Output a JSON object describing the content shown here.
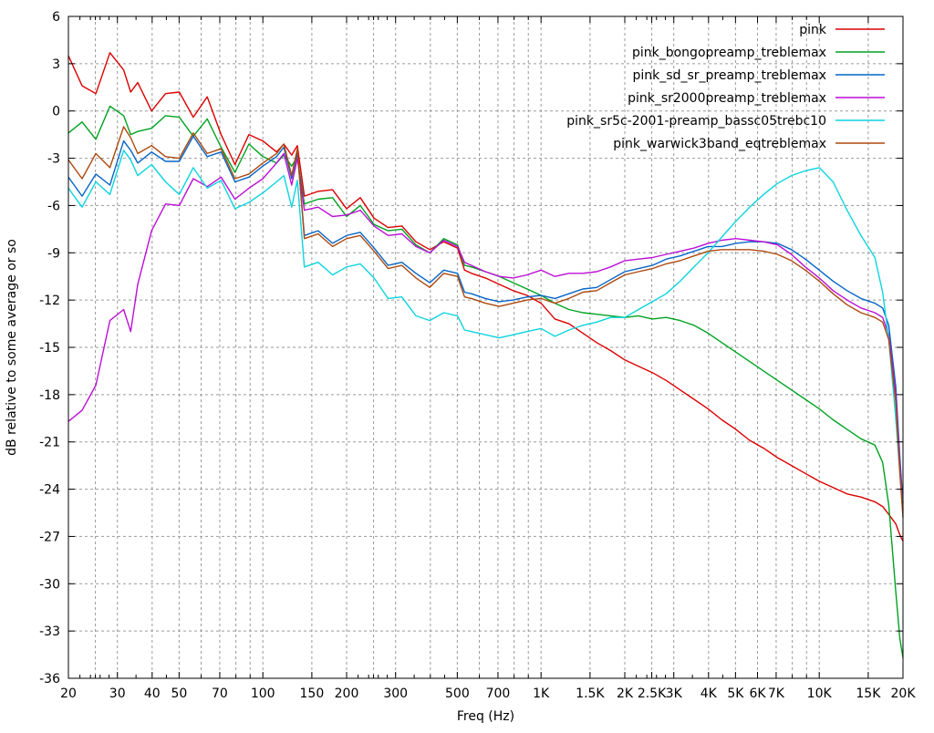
{
  "chart_data": {
    "type": "line",
    "title": "",
    "xlabel": "Freq (Hz)",
    "ylabel": "dB relative to some average or so",
    "x_scale": "log",
    "xlim": [
      20,
      20000
    ],
    "ylim": [
      -36,
      6
    ],
    "y_tick_step": 3,
    "grid": true,
    "grid_color": "#9a9a9a",
    "border_color": "#000000",
    "background_color": "#ffffff",
    "legend_position": "top-right-inside",
    "x_ticks": [
      {
        "f": 20,
        "label": "20"
      },
      {
        "f": 30,
        "label": "30"
      },
      {
        "f": 40,
        "label": "40"
      },
      {
        "f": 50,
        "label": "50"
      },
      {
        "f": 70,
        "label": "70"
      },
      {
        "f": 100,
        "label": "100"
      },
      {
        "f": 150,
        "label": "150"
      },
      {
        "f": 200,
        "label": "200"
      },
      {
        "f": 300,
        "label": "300"
      },
      {
        "f": 500,
        "label": "500"
      },
      {
        "f": 700,
        "label": "700"
      },
      {
        "f": 1000,
        "label": "1K"
      },
      {
        "f": 1500,
        "label": "1.5K"
      },
      {
        "f": 2000,
        "label": "2K"
      },
      {
        "f": 2500,
        "label": "2.5K"
      },
      {
        "f": 3000,
        "label": "3K"
      },
      {
        "f": 4000,
        "label": "4K"
      },
      {
        "f": 5000,
        "label": "5K"
      },
      {
        "f": 6000,
        "label": "6K"
      },
      {
        "f": 7000,
        "label": "7K"
      },
      {
        "f": 10000,
        "label": "10K"
      },
      {
        "f": 15000,
        "label": "15K"
      },
      {
        "f": 20000,
        "label": "20K"
      }
    ],
    "x_minor_grid": [
      25,
      60,
      80,
      90,
      250,
      400,
      600,
      800,
      900,
      8000,
      9000
    ],
    "x_tiny_ticks": [
      22,
      24,
      26,
      28,
      35,
      45,
      220,
      240,
      260,
      280,
      350,
      450,
      2200,
      2400,
      2600,
      2800,
      3500,
      4500
    ],
    "freqs": [
      20,
      22.4,
      25.1,
      28.2,
      31.6,
      33.5,
      35.5,
      39.8,
      44.7,
      50.1,
      56.2,
      63.1,
      70.8,
      79.4,
      89.1,
      100,
      112,
      119,
      127,
      133,
      141,
      158,
      178,
      200,
      224,
      251,
      282,
      316,
      355,
      398,
      447,
      501,
      531,
      562,
      631,
      708,
      794,
      891,
      1000,
      1122,
      1259,
      1413,
      1585,
      1778,
      2000,
      2239,
      2512,
      2818,
      3162,
      3548,
      3981,
      4467,
      5012,
      5623,
      6310,
      7079,
      7943,
      8913,
      10000,
      11220,
      12589,
      14125,
      15849,
      16900,
      17783,
      18836,
      19500,
      20000
    ],
    "series": [
      {
        "name": "pink",
        "color": "#dc0000",
        "values": [
          3.5,
          1.6,
          1.1,
          3.7,
          2.6,
          1.2,
          1.8,
          0.0,
          1.1,
          1.2,
          -0.4,
          0.9,
          -1.5,
          -3.4,
          -1.5,
          -1.9,
          -2.6,
          -2.1,
          -2.8,
          -2.2,
          -5.4,
          -5.1,
          -5.0,
          -6.2,
          -5.5,
          -6.8,
          -7.4,
          -7.3,
          -8.3,
          -8.8,
          -8.3,
          -8.7,
          -10.1,
          -10.3,
          -10.6,
          -11.0,
          -11.4,
          -11.7,
          -12.2,
          -13.2,
          -13.5,
          -14.1,
          -14.7,
          -15.2,
          -15.8,
          -16.2,
          -16.6,
          -17.1,
          -17.7,
          -18.3,
          -18.9,
          -19.6,
          -20.2,
          -20.9,
          -21.4,
          -22.0,
          -22.5,
          -23.0,
          -23.5,
          -23.9,
          -24.3,
          -24.5,
          -24.8,
          -25.1,
          -25.6,
          -26.2,
          -26.9,
          -27.3
        ]
      },
      {
        "name": "pink_bongopreamp_treblemax",
        "color": "#00a321",
        "values": [
          -1.4,
          -0.7,
          -1.8,
          0.3,
          -0.3,
          -1.5,
          -1.3,
          -1.1,
          -0.3,
          -0.4,
          -1.6,
          -0.5,
          -2.3,
          -3.9,
          -2.1,
          -2.9,
          -3.3,
          -2.8,
          -3.5,
          -2.9,
          -5.9,
          -5.6,
          -5.5,
          -6.7,
          -6.0,
          -7.2,
          -7.6,
          -7.5,
          -8.5,
          -9.0,
          -8.1,
          -8.5,
          -9.8,
          -9.9,
          -10.2,
          -10.5,
          -10.9,
          -11.3,
          -11.7,
          -12.2,
          -12.6,
          -12.8,
          -12.9,
          -13.0,
          -13.1,
          -13.0,
          -13.2,
          -13.1,
          -13.3,
          -13.6,
          -14.1,
          -14.7,
          -15.3,
          -15.9,
          -16.5,
          -17.1,
          -17.7,
          -18.3,
          -18.9,
          -19.6,
          -20.2,
          -20.8,
          -21.2,
          -22.3,
          -25.0,
          -30.5,
          -33.5,
          -34.7
        ]
      },
      {
        "name": "pink_sd_sr_preamp_treblemax",
        "color": "#0665c8",
        "values": [
          -4.2,
          -5.4,
          -4.0,
          -4.7,
          -1.9,
          -2.5,
          -3.3,
          -2.6,
          -3.2,
          -3.2,
          -1.6,
          -2.9,
          -2.6,
          -4.5,
          -4.2,
          -3.5,
          -2.9,
          -2.3,
          -4.3,
          -2.6,
          -7.9,
          -7.6,
          -8.4,
          -7.9,
          -7.7,
          -8.7,
          -9.8,
          -9.6,
          -10.3,
          -10.9,
          -10.1,
          -10.3,
          -11.5,
          -11.6,
          -11.9,
          -12.1,
          -12.0,
          -11.8,
          -11.7,
          -11.9,
          -11.6,
          -11.3,
          -11.2,
          -10.7,
          -10.2,
          -10.0,
          -9.8,
          -9.4,
          -9.2,
          -8.9,
          -8.6,
          -8.6,
          -8.4,
          -8.3,
          -8.3,
          -8.4,
          -8.8,
          -9.4,
          -10.1,
          -10.8,
          -11.4,
          -11.9,
          -12.2,
          -12.5,
          -13.6,
          -17.5,
          -22.0,
          -24.9
        ]
      },
      {
        "name": "pink_sr2000preamp_treblemax",
        "color": "#bb0fd6",
        "values": [
          -19.7,
          -19.0,
          -17.4,
          -13.3,
          -12.6,
          -14.0,
          -11.0,
          -7.6,
          -5.9,
          -6.0,
          -4.3,
          -4.8,
          -4.2,
          -5.6,
          -4.9,
          -4.3,
          -3.3,
          -2.7,
          -4.7,
          -3.0,
          -6.3,
          -6.1,
          -6.7,
          -6.6,
          -6.3,
          -7.3,
          -7.9,
          -7.8,
          -8.6,
          -9.0,
          -8.2,
          -8.6,
          -9.6,
          -9.8,
          -10.2,
          -10.5,
          -10.6,
          -10.4,
          -10.1,
          -10.5,
          -10.3,
          -10.3,
          -10.2,
          -9.9,
          -9.5,
          -9.4,
          -9.3,
          -9.1,
          -8.9,
          -8.7,
          -8.4,
          -8.2,
          -8.1,
          -8.2,
          -8.3,
          -8.5,
          -9.1,
          -9.9,
          -10.6,
          -11.4,
          -12.0,
          -12.5,
          -12.8,
          -13.1,
          -14.2,
          -18.0,
          -22.5,
          -25.3
        ]
      },
      {
        "name": "pink_sr5c-2001-preamp_bassc05trebc10",
        "color": "#0cd4e0",
        "values": [
          -4.9,
          -6.1,
          -4.5,
          -5.3,
          -2.5,
          -3.1,
          -4.1,
          -3.4,
          -4.5,
          -5.3,
          -3.6,
          -4.9,
          -4.4,
          -6.2,
          -5.8,
          -5.2,
          -4.5,
          -4.1,
          -6.1,
          -4.4,
          -9.9,
          -9.6,
          -10.4,
          -9.9,
          -9.7,
          -10.6,
          -11.9,
          -11.8,
          -13.0,
          -13.3,
          -12.8,
          -13.0,
          -13.9,
          -14.0,
          -14.2,
          -14.4,
          -14.2,
          -14.0,
          -13.8,
          -14.3,
          -13.9,
          -13.6,
          -13.4,
          -13.1,
          -13.1,
          -12.6,
          -12.1,
          -11.6,
          -10.8,
          -9.9,
          -9.0,
          -8.0,
          -7.0,
          -6.1,
          -5.3,
          -4.6,
          -4.1,
          -3.8,
          -3.6,
          -4.5,
          -6.3,
          -7.9,
          -9.3,
          -11.5,
          -14.5,
          -19.5,
          -23.0,
          -25.5
        ]
      },
      {
        "name": "pink_warwick3band_eqtreblemax",
        "color": "#ad490e",
        "values": [
          -3.1,
          -4.3,
          -2.7,
          -3.6,
          -1.0,
          -1.7,
          -2.7,
          -2.2,
          -2.9,
          -3.0,
          -1.4,
          -2.7,
          -2.4,
          -4.3,
          -4.0,
          -3.3,
          -2.7,
          -2.1,
          -4.1,
          -2.4,
          -8.1,
          -7.8,
          -8.6,
          -8.1,
          -7.9,
          -8.9,
          -10.0,
          -9.8,
          -10.6,
          -11.2,
          -10.3,
          -10.5,
          -11.8,
          -11.9,
          -12.2,
          -12.4,
          -12.2,
          -12.0,
          -11.9,
          -12.2,
          -11.9,
          -11.5,
          -11.4,
          -10.9,
          -10.4,
          -10.2,
          -10.0,
          -9.7,
          -9.5,
          -9.2,
          -8.9,
          -8.8,
          -8.8,
          -8.8,
          -8.9,
          -9.1,
          -9.5,
          -10.1,
          -10.8,
          -11.6,
          -12.3,
          -12.8,
          -13.1,
          -13.4,
          -14.5,
          -18.5,
          -23.0,
          -25.8
        ]
      }
    ]
  }
}
